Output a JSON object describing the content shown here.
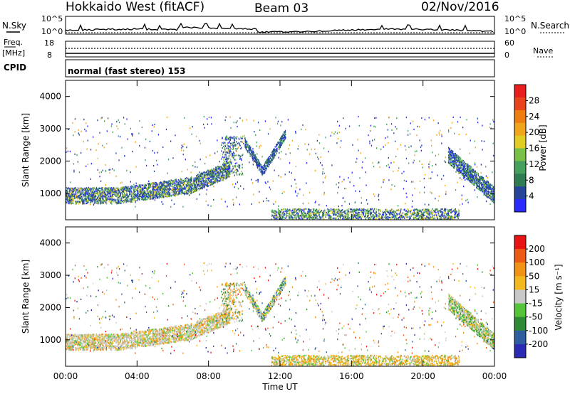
{
  "header": {
    "station": "Hokkaido West (fitACF)",
    "beam": "Beam 03",
    "date": "02/Nov/2016"
  },
  "sky_panel": {
    "left_label": "N.Sky",
    "right_label": "N.Search",
    "ticks": [
      "10^5",
      "10^0"
    ]
  },
  "freq_panel": {
    "left_label_1": "Freq.",
    "left_label_2": "[MHz]",
    "left_ticks": [
      "18",
      "8"
    ],
    "right_label": "Nave",
    "right_ticks": [
      "60",
      "0"
    ],
    "cpid_label": "CPID"
  },
  "cpid_text": "normal (fast stereo) 153",
  "colors": {
    "power": [
      "#2a2aff",
      "#26459a",
      "#2f7c52",
      "#44a05c",
      "#78c046",
      "#e0cc22",
      "#f0a51a",
      "#ee7d12",
      "#e8431a",
      "#e81e1e"
    ],
    "velocity": [
      "#e81414",
      "#ee5a12",
      "#f29214",
      "#f2b81e",
      "#c8c8c8",
      "#56c43a",
      "#2f8a36",
      "#2f5ea0",
      "#2a2ab4"
    ]
  },
  "chart_data": [
    {
      "type": "heatmap",
      "title": "Power",
      "ylabel": "Slant Range [km]",
      "xlabel": "",
      "ylim": [
        180,
        4500
      ],
      "xlim": [
        "00:00",
        "00:00"
      ],
      "y_ticks": [
        "1000",
        "2000",
        "3000",
        "4000"
      ],
      "x_ticks": [],
      "colorbar": {
        "label": "Power [dB]",
        "ticks": [
          "4",
          "8",
          "12",
          "16",
          "20",
          "24",
          "28"
        ]
      }
    },
    {
      "type": "heatmap",
      "title": "Velocity",
      "ylabel": "Slant Range [km]",
      "xlabel": "Time UT",
      "ylim": [
        180,
        4500
      ],
      "xlim": [
        "00:00",
        "00:00"
      ],
      "y_ticks": [
        "1000",
        "2000",
        "3000",
        "4000"
      ],
      "x_ticks": [
        "00:00",
        "04:00",
        "08:00",
        "12:00",
        "16:00",
        "20:00",
        "00:00"
      ],
      "colorbar": {
        "label": "Velocity [m s⁻¹]",
        "ticks": [
          "200",
          "100",
          "50",
          "15",
          "-15",
          "-50",
          "-100",
          "-200"
        ]
      }
    }
  ]
}
